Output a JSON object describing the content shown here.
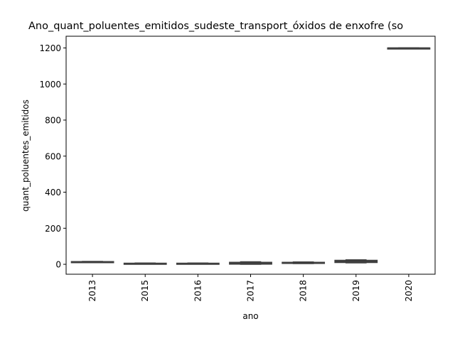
{
  "chart_data": {
    "type": "boxplot",
    "title": "Ano_quant_poluentes_emitidos_sudeste_transport_óxidos de enxofre (so",
    "xlabel": "ano",
    "ylabel": "quant_poluentes_emitidos",
    "categories": [
      "2013",
      "2015",
      "2016",
      "2017",
      "2018",
      "2019",
      "2020"
    ],
    "boxes": [
      {
        "category": "2013",
        "min": 12,
        "q1": 13,
        "median": 14,
        "q3": 15,
        "max": 16
      },
      {
        "category": "2015",
        "min": 3,
        "q1": 4,
        "median": 5,
        "q3": 6,
        "max": 7
      },
      {
        "category": "2016",
        "min": 3,
        "q1": 4,
        "median": 5,
        "q3": 6,
        "max": 7
      },
      {
        "category": "2017",
        "min": 0,
        "q1": 1,
        "median": 5,
        "q3": 11,
        "max": 14
      },
      {
        "category": "2018",
        "min": 4,
        "q1": 5,
        "median": 8,
        "q3": 11,
        "max": 13
      },
      {
        "category": "2019",
        "min": 8,
        "q1": 10,
        "median": 15,
        "q3": 22,
        "max": 25
      },
      {
        "category": "2020",
        "min": 1200,
        "q1": 1200,
        "median": 1200,
        "q3": 1200,
        "max": 1200
      }
    ],
    "ylim": [
      -55,
      1265
    ],
    "yticks": [
      0,
      200,
      400,
      600,
      800,
      1000,
      1200
    ],
    "grid": false,
    "colors": {
      "box_edge": "#3f3f3f",
      "box_fill": "#3f3f3f",
      "axis": "#000000"
    }
  }
}
